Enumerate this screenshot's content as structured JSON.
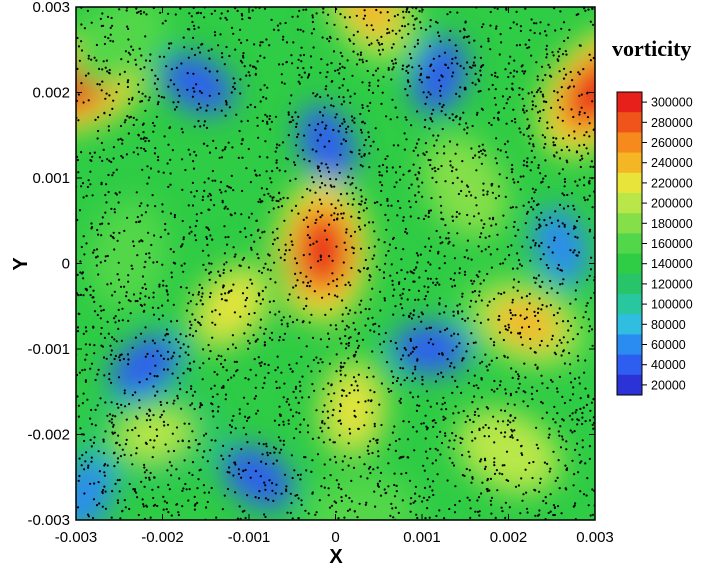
{
  "chart_data": {
    "type": "heatmap",
    "title": "",
    "xlabel": "X",
    "ylabel": "Y",
    "xlim": [
      -0.003,
      0.003
    ],
    "ylim": [
      -0.003,
      0.003
    ],
    "x_ticks": [
      "-0.003",
      "-0.002",
      "-0.001",
      "0",
      "0.001",
      "0.002",
      "0.003"
    ],
    "y_ticks": [
      "0.003",
      "0.002",
      "0.001",
      "0",
      "-0.001",
      "-0.002",
      "-0.003"
    ],
    "x_tick_values": [
      -0.003,
      -0.002,
      -0.001,
      0,
      0.001,
      0.002,
      0.003
    ],
    "y_tick_values": [
      0.003,
      0.002,
      0.001,
      0,
      -0.001,
      -0.002,
      -0.003
    ],
    "colorbar": {
      "title": "vorticity",
      "levels": [
        "300000",
        "280000",
        "260000",
        "240000",
        "220000",
        "200000",
        "180000",
        "160000",
        "140000",
        "120000",
        "100000",
        "80000",
        "60000",
        "40000",
        "20000"
      ],
      "level_values": [
        300000,
        280000,
        260000,
        240000,
        220000,
        200000,
        180000,
        160000,
        140000,
        120000,
        100000,
        80000,
        60000,
        40000,
        20000
      ],
      "colors": [
        "#e8201c",
        "#f1541b",
        "#f78a1c",
        "#f5b625",
        "#e8e43a",
        "#b9e74a",
        "#84df48",
        "#52d74a",
        "#2fcc45",
        "#27c46a",
        "#28c7a0",
        "#2fbde0",
        "#2a8cf0",
        "#2e5ef0",
        "#2b33d6"
      ]
    },
    "field_features": [
      {
        "x": -0.00015,
        "y": 0.00015,
        "vorticity": 300000
      },
      {
        "x": 0.003,
        "y": 0.002,
        "vorticity": 300000
      },
      {
        "x": -0.003,
        "y": 0.0021,
        "vorticity": 290000
      },
      {
        "x": 0.0022,
        "y": -0.0007,
        "vorticity": 240000
      },
      {
        "x": 0.0004,
        "y": 0.003,
        "vorticity": 230000
      },
      {
        "x": 0.0002,
        "y": -0.0017,
        "vorticity": 220000
      },
      {
        "x": -0.0012,
        "y": -0.0005,
        "vorticity": 220000
      },
      {
        "x": -0.0021,
        "y": -0.002,
        "vorticity": 200000
      },
      {
        "x": 0.002,
        "y": -0.0022,
        "vorticity": 190000
      },
      {
        "x": 0.0015,
        "y": 0.0009,
        "vorticity": 170000
      },
      {
        "x": -0.0024,
        "y": 0.0001,
        "vorticity": 160000
      },
      {
        "x": -0.0025,
        "y": 0.0026,
        "vorticity": 150000
      },
      {
        "x": 0.0003,
        "y": -0.0029,
        "vorticity": 150000
      },
      {
        "x": -0.0016,
        "y": 0.0021,
        "vorticity": 40000
      },
      {
        "x": -0.0001,
        "y": 0.0014,
        "vorticity": 40000
      },
      {
        "x": 0.0012,
        "y": 0.0022,
        "vorticity": 40000
      },
      {
        "x": -0.0022,
        "y": -0.0012,
        "vorticity": 40000
      },
      {
        "x": 0.0011,
        "y": -0.001,
        "vorticity": 40000
      },
      {
        "x": -0.0009,
        "y": -0.0025,
        "vorticity": 40000
      },
      {
        "x": 0.0026,
        "y": 0.0002,
        "vorticity": 60000
      },
      {
        "x": -0.0029,
        "y": -0.0027,
        "vorticity": 50000
      }
    ],
    "particles": {
      "color": "#000000"
    },
    "grid": false,
    "legend_position": "right"
  }
}
